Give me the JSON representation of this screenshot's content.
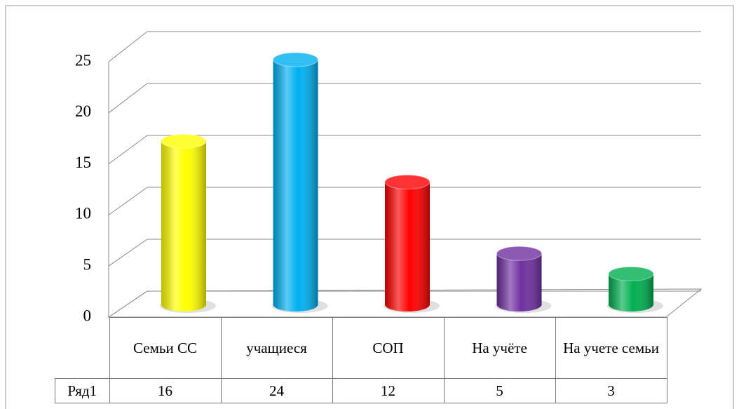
{
  "chart_data": {
    "type": "bar",
    "categories": [
      "Семьи СС",
      "учащиеся",
      "СОП",
      "На учёте",
      "На учете семьи"
    ],
    "series": [
      {
        "name": "Ряд1",
        "colors": [
          "#ffff00",
          "#00b0f0",
          "#ff0000",
          "#7030a0",
          "#00b050"
        ],
        "values": [
          16,
          24,
          12,
          5,
          3
        ]
      }
    ],
    "ylim": [
      0,
      25
    ],
    "yticks": [
      0,
      5,
      10,
      15,
      20,
      25
    ],
    "grid": true
  }
}
